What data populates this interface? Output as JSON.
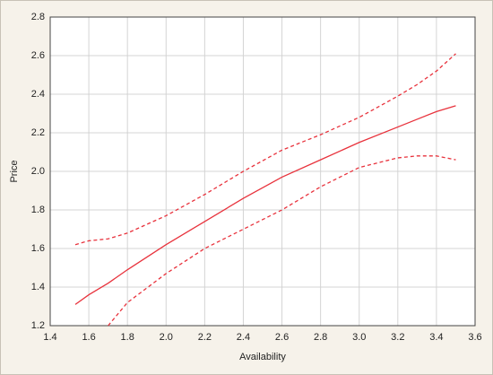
{
  "chart_data": {
    "type": "line",
    "x_label": "Availability",
    "y_label": "Price",
    "x": [
      1.53,
      1.6,
      1.7,
      1.8,
      2.0,
      2.2,
      2.4,
      2.6,
      2.8,
      3.0,
      3.2,
      3.3,
      3.4,
      3.5
    ],
    "series": [
      {
        "color": "#e8323c",
        "style": "solid",
        "values": [
          1.31,
          1.36,
          1.42,
          1.49,
          1.62,
          1.74,
          1.86,
          1.97,
          2.06,
          2.15,
          2.23,
          2.27,
          2.31,
          2.34
        ]
      },
      {
        "color": "#e8323c",
        "style": "dashed",
        "values": [
          1.62,
          1.64,
          1.65,
          1.68,
          1.77,
          1.88,
          2.0,
          2.11,
          2.19,
          2.28,
          2.39,
          2.45,
          2.52,
          2.61
        ]
      },
      {
        "color": "#e8323c",
        "style": "dashed",
        "values": [
          null,
          null,
          1.2,
          1.32,
          1.47,
          1.6,
          1.7,
          1.8,
          1.92,
          2.02,
          2.07,
          2.08,
          2.08,
          2.06
        ]
      }
    ],
    "xlim": [
      1.4,
      3.6
    ],
    "xticks": [
      1.4,
      1.6,
      1.8,
      {
        "value": 2,
        "label": "2.0"
      },
      2.2,
      2.4,
      2.6,
      2.8,
      {
        "value": 3,
        "label": "3.0"
      },
      3.2,
      3.4,
      3.6
    ],
    "ylim": [
      1.2,
      2.8
    ],
    "yticks": [
      1.2,
      1.4,
      1.6,
      1.8,
      {
        "value": 2,
        "label": "2.0"
      },
      2.2,
      2.4,
      2.6,
      2.8
    ],
    "grid": true
  }
}
